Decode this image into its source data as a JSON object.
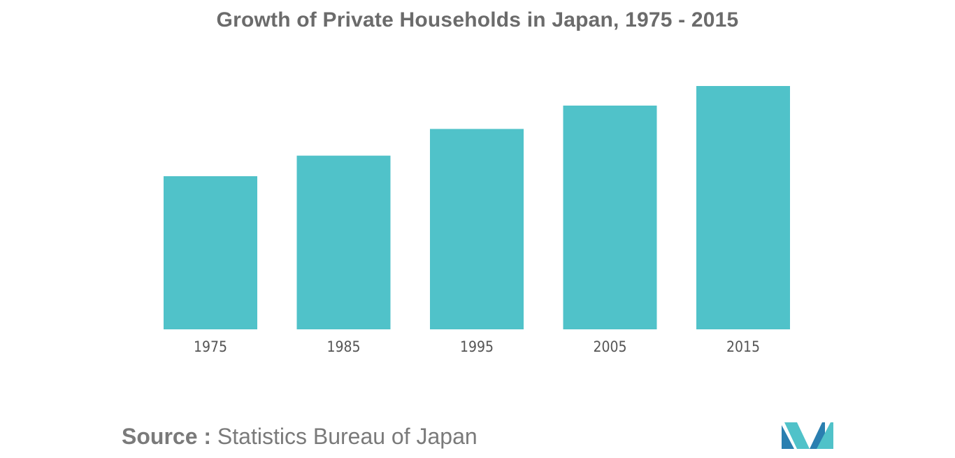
{
  "chart_data": {
    "type": "bar",
    "title": "Growth of Private Households in Japan, 1975 - 2015",
    "categories": [
      "1975",
      "1985",
      "1995",
      "2005",
      "2015"
    ],
    "values": [
      32.1,
      36.4,
      42.0,
      46.9,
      51.0
    ],
    "ylim": [
      0,
      51.0
    ],
    "xlabel": "",
    "ylabel": "",
    "grid": false,
    "legend": "none",
    "bar_color": "#50c2c9"
  },
  "source": {
    "label": "Source :",
    "text": "Statistics Bureau of Japan"
  },
  "colors": {
    "title": "#6b6b6b",
    "tick_label": "#555555",
    "source": "#7a7a7a",
    "logo_dark": "#2a7fb0",
    "logo_light": "#50c2c9"
  }
}
